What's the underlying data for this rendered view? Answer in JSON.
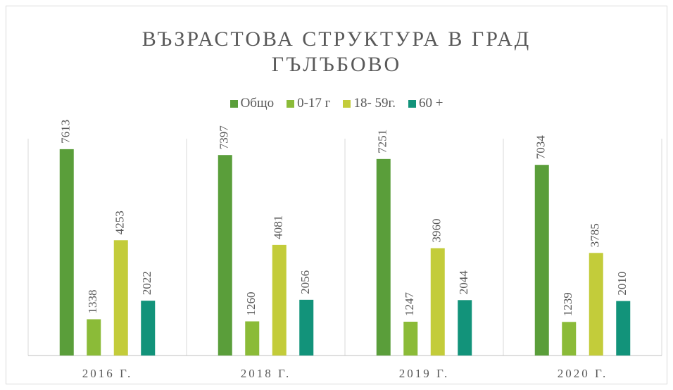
{
  "chart_data": {
    "type": "bar",
    "title": "ВЪЗРАСТОВА СТРУКТУРА В ГРАД ГЪЛЪБОВО",
    "categories": [
      "2016 Г.",
      "2018 Г.",
      "2019 Г.",
      "2020 Г."
    ],
    "series": [
      {
        "name": "Общо",
        "color": "#5a9e3a",
        "values": [
          7613,
          7397,
          7251,
          7034
        ]
      },
      {
        "name": "0-17 г",
        "color": "#8bbb38",
        "values": [
          1338,
          1260,
          1247,
          1239
        ]
      },
      {
        "name": "18- 59г.",
        "color": "#c3cc3a",
        "values": [
          4253,
          4081,
          3960,
          3785
        ]
      },
      {
        "name": "60 +",
        "color": "#12937a",
        "values": [
          2022,
          2056,
          2044,
          2010
        ]
      }
    ],
    "ylim": [
      0,
      8000
    ],
    "legend": "top"
  }
}
